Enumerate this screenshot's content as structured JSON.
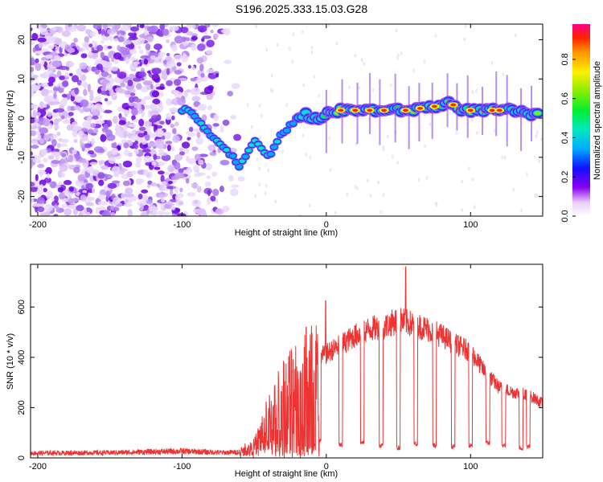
{
  "title": "S196.2025.333.15.03.G28",
  "chart_data": [
    {
      "type": "heatmap",
      "name": "spectrogram",
      "xlabel": "Height of straight line (km)",
      "ylabel": "Frequency (Hz)",
      "xlim": [
        -205,
        150
      ],
      "ylim": [
        -25,
        24
      ],
      "xticks": [
        -200,
        -100,
        0,
        100
      ],
      "yticks": [
        -20,
        -10,
        0,
        10,
        20
      ],
      "colorbar": {
        "label": "Normalized spectral amplitude",
        "range": [
          0,
          0.98
        ],
        "ticks": [
          0.0,
          0.2,
          0.4,
          0.6,
          0.8
        ],
        "tick_labels": [
          "0.0",
          "0.2",
          "0.4",
          "0.6",
          "0.8"
        ]
      },
      "ridge": {
        "x": [
          -100,
          -95,
          -90,
          -85,
          -80,
          -75,
          -70,
          -65,
          -60,
          -55,
          -50,
          -45,
          -40,
          -35,
          -30,
          -25,
          -20,
          -15,
          -10,
          -5,
          0,
          10,
          20,
          30,
          40,
          50,
          60,
          70,
          80,
          85,
          90,
          95,
          100,
          110,
          120,
          130,
          140,
          148
        ],
        "y": [
          2,
          2,
          0,
          -2,
          -4,
          -6,
          -8,
          -10,
          -12,
          -9,
          -6,
          -8,
          -10,
          -6,
          -4,
          -2,
          0,
          1,
          0,
          0,
          1,
          2,
          2,
          2,
          2,
          2,
          2,
          3,
          3,
          4,
          3,
          2,
          2,
          2,
          2,
          2,
          1,
          1
        ]
      },
      "noise_region_x": [
        -205,
        -55
      ],
      "noise_region_y": [
        -25,
        24
      ]
    },
    {
      "type": "line",
      "name": "snr",
      "xlabel": "Height of straight line (km)",
      "ylabel": "SNR (10 * v/v)",
      "xlim": [
        -205,
        150
      ],
      "ylim": [
        0,
        770
      ],
      "xticks": [
        -200,
        -100,
        0,
        100
      ],
      "yticks": [
        0,
        200,
        400,
        600
      ],
      "color": "#ee3333",
      "envelope": {
        "x": [
          -205,
          -150,
          -100,
          -70,
          -60,
          -50,
          -40,
          -30,
          -20,
          -10,
          0,
          10,
          20,
          30,
          40,
          50,
          60,
          70,
          80,
          90,
          100,
          110,
          120,
          130,
          140,
          150
        ],
        "y": [
          20,
          22,
          28,
          22,
          25,
          60,
          200,
          320,
          400,
          430,
          460,
          500,
          540,
          570,
          580,
          610,
          590,
          570,
          540,
          500,
          470,
          380,
          310,
          290,
          280,
          240
        ]
      },
      "dropouts_x": [
        -5,
        10,
        25,
        38,
        50,
        62,
        75,
        88,
        100,
        112,
        123,
        135,
        140
      ],
      "dropout_values": [
        60,
        40,
        50,
        40,
        30,
        45,
        40,
        35,
        40,
        50,
        40,
        30,
        35
      ],
      "spikes": [
        {
          "x": -0.5,
          "y": 625
        },
        {
          "x": 55,
          "y": 760
        },
        {
          "x": -14,
          "y": 520
        }
      ]
    }
  ]
}
